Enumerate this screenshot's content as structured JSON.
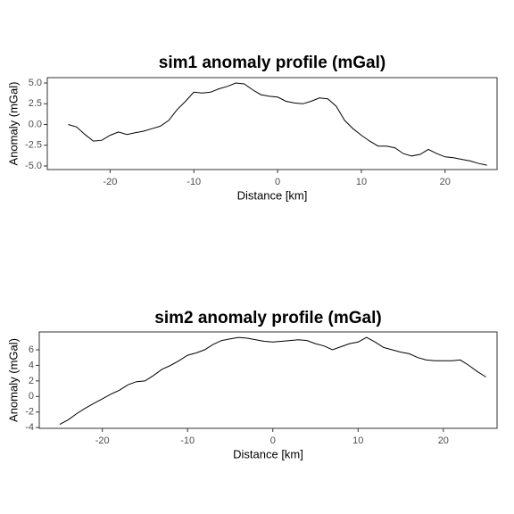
{
  "chart_data": [
    {
      "type": "line",
      "title": "sim1 anomaly profile (mGal)",
      "x_label": "Distance [km]",
      "y_label": "Anomaly (mGal)",
      "x": [
        -25,
        -24,
        -23,
        -22,
        -21,
        -20,
        -19,
        -18,
        -17,
        -16,
        -15,
        -14,
        -13,
        -12,
        -11,
        -10,
        -9,
        -8,
        -7,
        -6,
        -5,
        -4,
        -3,
        -2,
        -1,
        0,
        1,
        2,
        3,
        4,
        5,
        6,
        7,
        8,
        9,
        10,
        11,
        12,
        13,
        14,
        15,
        16,
        17,
        18,
        19,
        20,
        21,
        22,
        23,
        24,
        25
      ],
      "series": [
        {
          "name": "sim1",
          "color": "#000000",
          "values": [
            0,
            -0.3,
            -1.2,
            -2.0,
            -1.9,
            -1.3,
            -0.9,
            -1.2,
            -1.0,
            -0.8,
            -0.5,
            -0.2,
            0.5,
            1.8,
            2.8,
            3.9,
            3.8,
            3.9,
            4.3,
            4.6,
            5.0,
            4.9,
            4.2,
            3.6,
            3.4,
            3.3,
            2.8,
            2.6,
            2.5,
            2.8,
            3.2,
            3.1,
            2.2,
            0.5,
            -0.5,
            -1.3,
            -2.0,
            -2.6,
            -2.6,
            -2.8,
            -3.5,
            -3.8,
            -3.6,
            -3.0,
            -3.5,
            -3.9,
            -4.0,
            -4.2,
            -4.4,
            -4.7,
            -4.9
          ]
        }
      ],
      "xlim": [
        -27.5,
        26.2
      ],
      "xticks": [
        -20,
        -10,
        0,
        10,
        20
      ],
      "ylim": [
        -5.43,
        5.65
      ],
      "yticks": [
        {
          "value": -5,
          "label": "-5.0"
        },
        -2.5,
        {
          "value": 0,
          "label": "0.0"
        },
        2.5,
        {
          "value": 5,
          "label": "5.0"
        }
      ]
    },
    {
      "type": "line",
      "title": "sim2 anomaly profile (mGal)",
      "x_label": "Distance [km]",
      "y_label": "Anomaly (mGal)",
      "x": [
        -25,
        -24,
        -23,
        -22,
        -21,
        -20,
        -19,
        -18,
        -17,
        -16,
        -15,
        -14,
        -13,
        -12,
        -11,
        -10,
        -9,
        -8,
        -7,
        -6,
        -5,
        -4,
        -3,
        -2,
        -1,
        0,
        1,
        2,
        3,
        4,
        5,
        6,
        7,
        8,
        9,
        10,
        11,
        12,
        13,
        14,
        15,
        16,
        17,
        18,
        19,
        20,
        21,
        22,
        23,
        24,
        25
      ],
      "series": [
        {
          "name": "sim2",
          "color": "#000000",
          "values": [
            -3.6,
            -3.0,
            -2.2,
            -1.5,
            -0.9,
            -0.3,
            0.3,
            0.8,
            1.5,
            1.9,
            2.0,
            2.7,
            3.5,
            4.0,
            4.6,
            5.3,
            5.6,
            6.0,
            6.7,
            7.2,
            7.4,
            7.6,
            7.5,
            7.3,
            7.1,
            7.0,
            7.1,
            7.2,
            7.3,
            7.2,
            6.8,
            6.5,
            6.0,
            6.4,
            6.8,
            7.0,
            7.6,
            7.0,
            6.3,
            6.0,
            5.7,
            5.5,
            5.0,
            4.7,
            4.6,
            4.6,
            4.6,
            4.7,
            4.0,
            3.2,
            2.5
          ]
        }
      ],
      "xlim": [
        -27.4,
        26.3
      ],
      "xticks": [
        -20,
        -10,
        0,
        10,
        20
      ],
      "ylim": [
        -4.1,
        8.3
      ],
      "yticks": [
        -4,
        -2,
        0,
        2,
        4,
        6
      ]
    }
  ]
}
